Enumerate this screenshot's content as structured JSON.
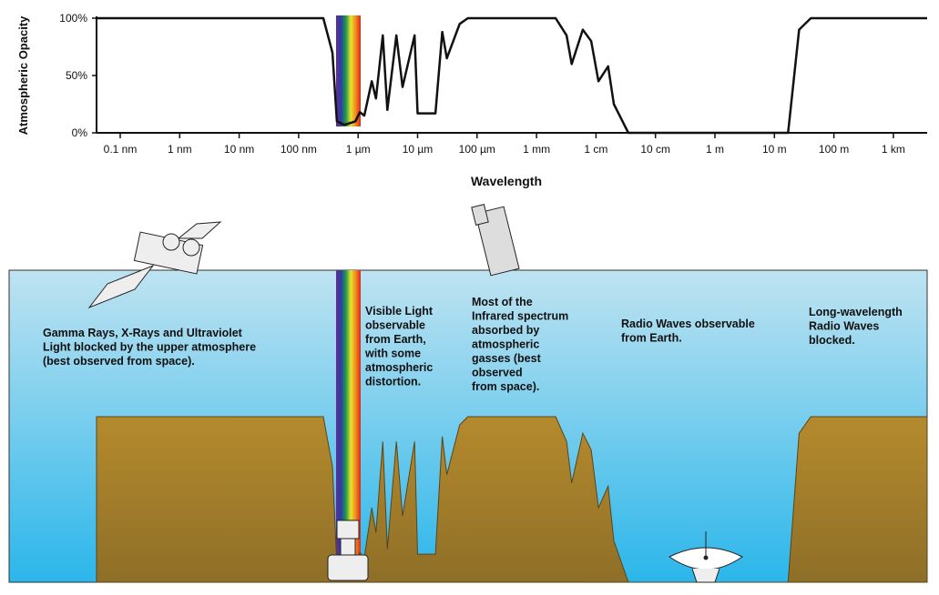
{
  "chart_data": {
    "type": "line",
    "ylabel": "Atmospheric Opacity",
    "xlabel": "Wavelength",
    "log_x": true,
    "color": "#111111",
    "xlim": [
      4e-11,
      3700
    ],
    "xticks": [
      {
        "value": 1e-10,
        "label": "0.1 nm"
      },
      {
        "value": 1e-09,
        "label": "1 nm"
      },
      {
        "value": 1e-08,
        "label": "10 nm"
      },
      {
        "value": 1e-07,
        "label": "100 nm"
      },
      {
        "value": 1e-06,
        "label": "1 µm"
      },
      {
        "value": 1e-05,
        "label": "10 µm"
      },
      {
        "value": 0.0001,
        "label": "100 µm"
      },
      {
        "value": 0.001,
        "label": "1 mm"
      },
      {
        "value": 0.01,
        "label": "1 cm"
      },
      {
        "value": 0.1,
        "label": "10 cm"
      },
      {
        "value": 1,
        "label": "1 m"
      },
      {
        "value": 10,
        "label": "10 m"
      },
      {
        "value": 100,
        "label": "100 m"
      },
      {
        "value": 1000,
        "label": "1 km"
      }
    ],
    "ylim": [
      0,
      100
    ],
    "yticks": [
      {
        "value": 0,
        "label": "0%"
      },
      {
        "value": 50,
        "label": "50%"
      },
      {
        "value": 100,
        "label": "100%"
      }
    ],
    "x": [
      4e-11,
      2.6e-07,
      3.7e-07,
      4.4e-07,
      5.9e-07,
      9e-07,
      1.07e-06,
      1.27e-06,
      1.7e-06,
      2e-06,
      2.6e-06,
      3.1e-06,
      4.4e-06,
      5.6e-06,
      8.9e-06,
      1e-05,
      2e-05,
      2.6e-05,
      3.1e-05,
      5.1e-05,
      7e-05,
      0.0021,
      0.0032,
      0.0039,
      0.006,
      0.0083,
      0.011,
      0.016,
      0.02,
      0.035,
      17,
      26,
      41,
      3700
    ],
    "values": [
      100,
      100,
      70,
      10,
      7,
      10,
      18,
      15,
      45,
      30,
      85,
      20,
      85,
      40,
      85,
      17,
      17,
      88,
      65,
      95,
      100,
      100,
      85,
      60,
      90,
      80,
      45,
      58,
      25,
      0,
      0,
      90,
      100,
      100
    ]
  },
  "annotations": [
    {
      "lines": [
        "Gamma Rays, X-Rays and Ultraviolet",
        "Light blocked by the upper atmosphere",
        "(best observed from space)."
      ]
    },
    {
      "lines": [
        "Visible Light",
        "observable",
        "from Earth,",
        "with some",
        "atmospheric",
        "distortion."
      ]
    },
    {
      "lines": [
        "Most of the",
        "Infrared spectrum",
        "absorbed by",
        "atmospheric",
        "gasses (best",
        "observed",
        "from space)."
      ]
    },
    {
      "lines": [
        "Radio Waves observable",
        "from Earth."
      ]
    },
    {
      "lines": [
        "Long-wavelength",
        "Radio Waves",
        "blocked."
      ]
    }
  ]
}
